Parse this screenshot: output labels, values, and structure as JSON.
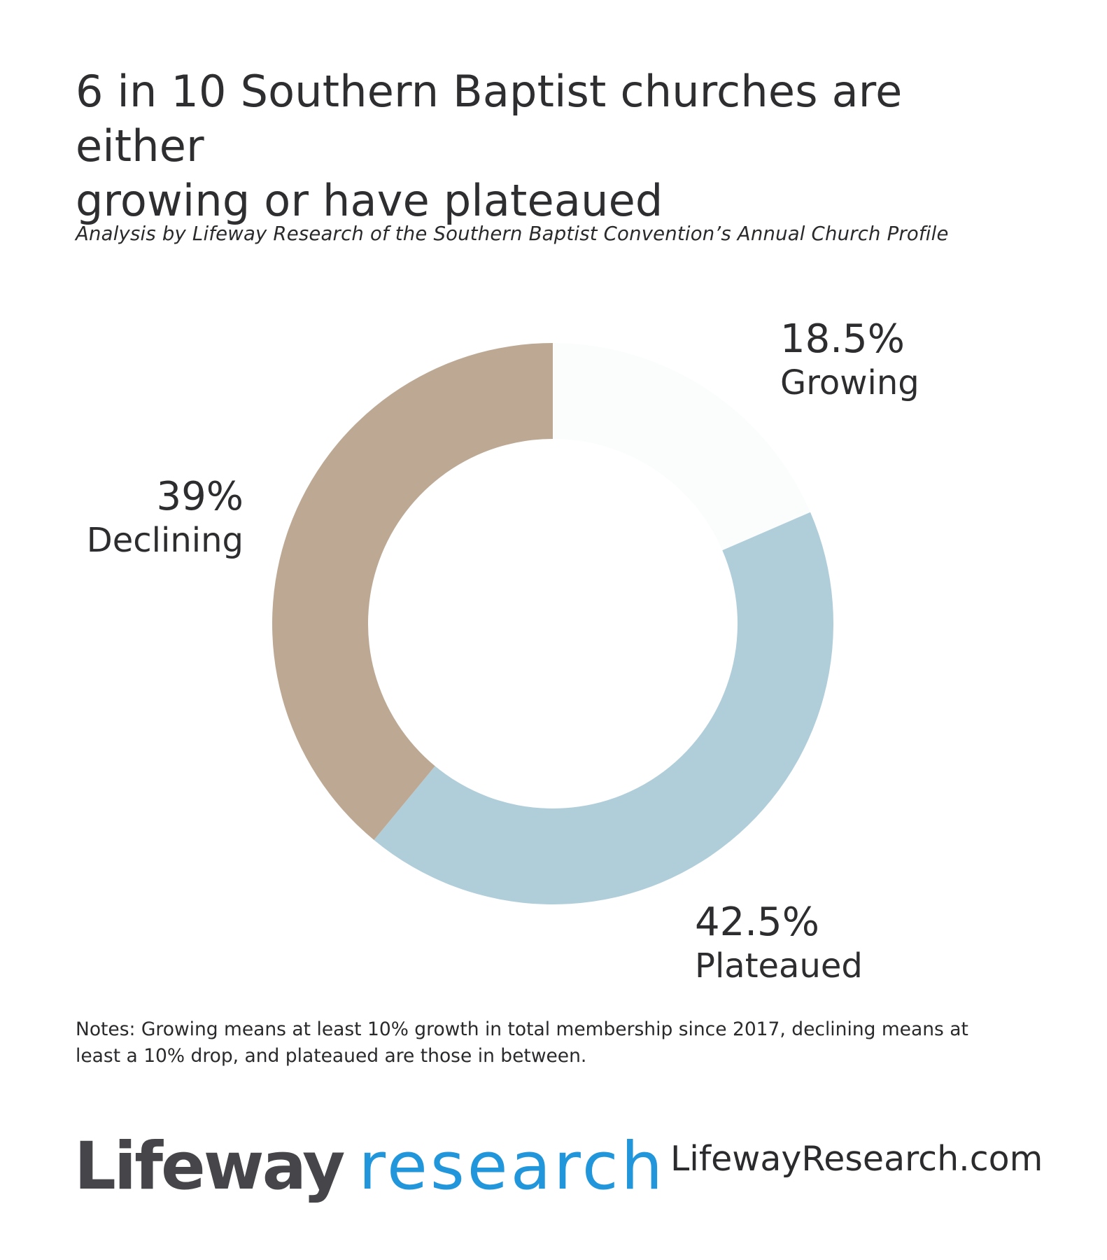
{
  "header": {
    "title_line1": "6 in 10 Southern Baptist churches are either",
    "title_line2": "growing or have plateaued",
    "subtitle": "Analysis by Lifeway Research of the Southern Baptist Convention’s Annual Church Profile"
  },
  "labels": {
    "growing": {
      "pct": "18.5%",
      "name": "Growing"
    },
    "declining": {
      "pct": "39%",
      "name": "Declining"
    },
    "plateaued": {
      "pct": "42.5%",
      "name": "Plateaued"
    }
  },
  "notes": {
    "line1": "Notes: Growing means at least 10% growth in total membership since 2017, declining means at",
    "line2": "least a 10% drop, and plateaued are those in between."
  },
  "footer": {
    "logo_brand": "Lifeway",
    "logo_research": "research",
    "url": "LifewayResearch.com"
  },
  "colors": {
    "growing": "#fbfdfd",
    "plateaued": "#b0ced9",
    "declining": "#bda993",
    "logo_blue": "#2196db",
    "text": "#2d2d2f"
  },
  "chart_data": {
    "type": "pie",
    "subtype": "donut",
    "title": "6 in 10 Southern Baptist churches are either growing or have plateaued",
    "subtitle": "Analysis by Lifeway Research of the Southern Baptist Convention’s Annual Church Profile",
    "categories": [
      "Growing",
      "Plateaued",
      "Declining"
    ],
    "values": [
      18.5,
      42.5,
      39
    ],
    "unit": "%",
    "start_angle_deg": 0,
    "direction": "clockwise",
    "colors": [
      "#fbfdfd",
      "#b0ced9",
      "#bda993"
    ],
    "legend": "none (direct labels)",
    "annotations": [
      "18.5% Growing",
      "42.5% Plateaued",
      "39% Declining"
    ],
    "notes": "Growing means at least 10% growth in total membership since 2017, declining means at least a 10% drop, and plateaued are those in between."
  }
}
